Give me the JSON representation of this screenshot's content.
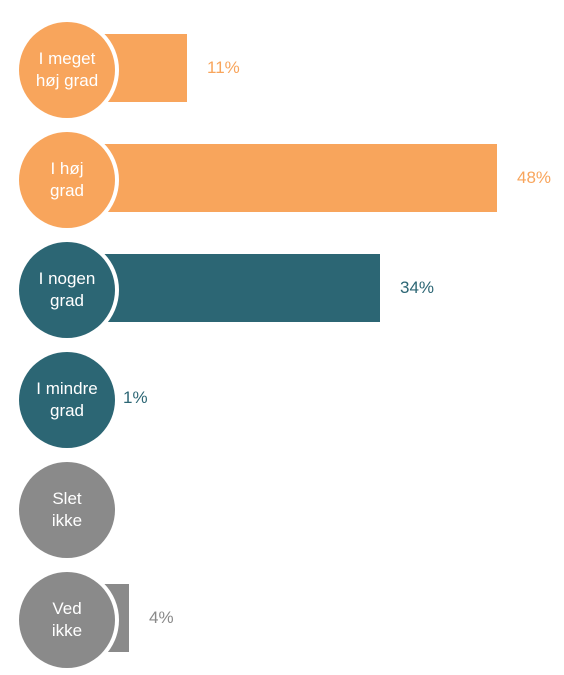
{
  "chart_data": {
    "type": "bar",
    "orientation": "horizontal",
    "categories": [
      "I meget høj grad",
      "I høj grad",
      "I nogen grad",
      "I mindre grad",
      "Slet ikke",
      "Ved ikke"
    ],
    "category_lines": [
      [
        "I meget",
        "høj grad"
      ],
      [
        "I høj",
        "grad"
      ],
      [
        "I nogen",
        "grad"
      ],
      [
        "I mindre",
        "grad"
      ],
      [
        "Slet",
        "ikke"
      ],
      [
        "Ved",
        "ikke"
      ]
    ],
    "values": [
      11,
      48,
      34,
      1,
      0,
      4
    ],
    "value_labels": [
      "11%",
      "48%",
      "34%",
      "1%",
      "",
      "4%"
    ],
    "colors": [
      "#F8A55C",
      "#F8A55C",
      "#2C6674",
      "#2C6674",
      "#8A8A8A",
      "#8A8A8A"
    ],
    "xlim": [
      0,
      48
    ],
    "grid": false,
    "legend": "none"
  }
}
